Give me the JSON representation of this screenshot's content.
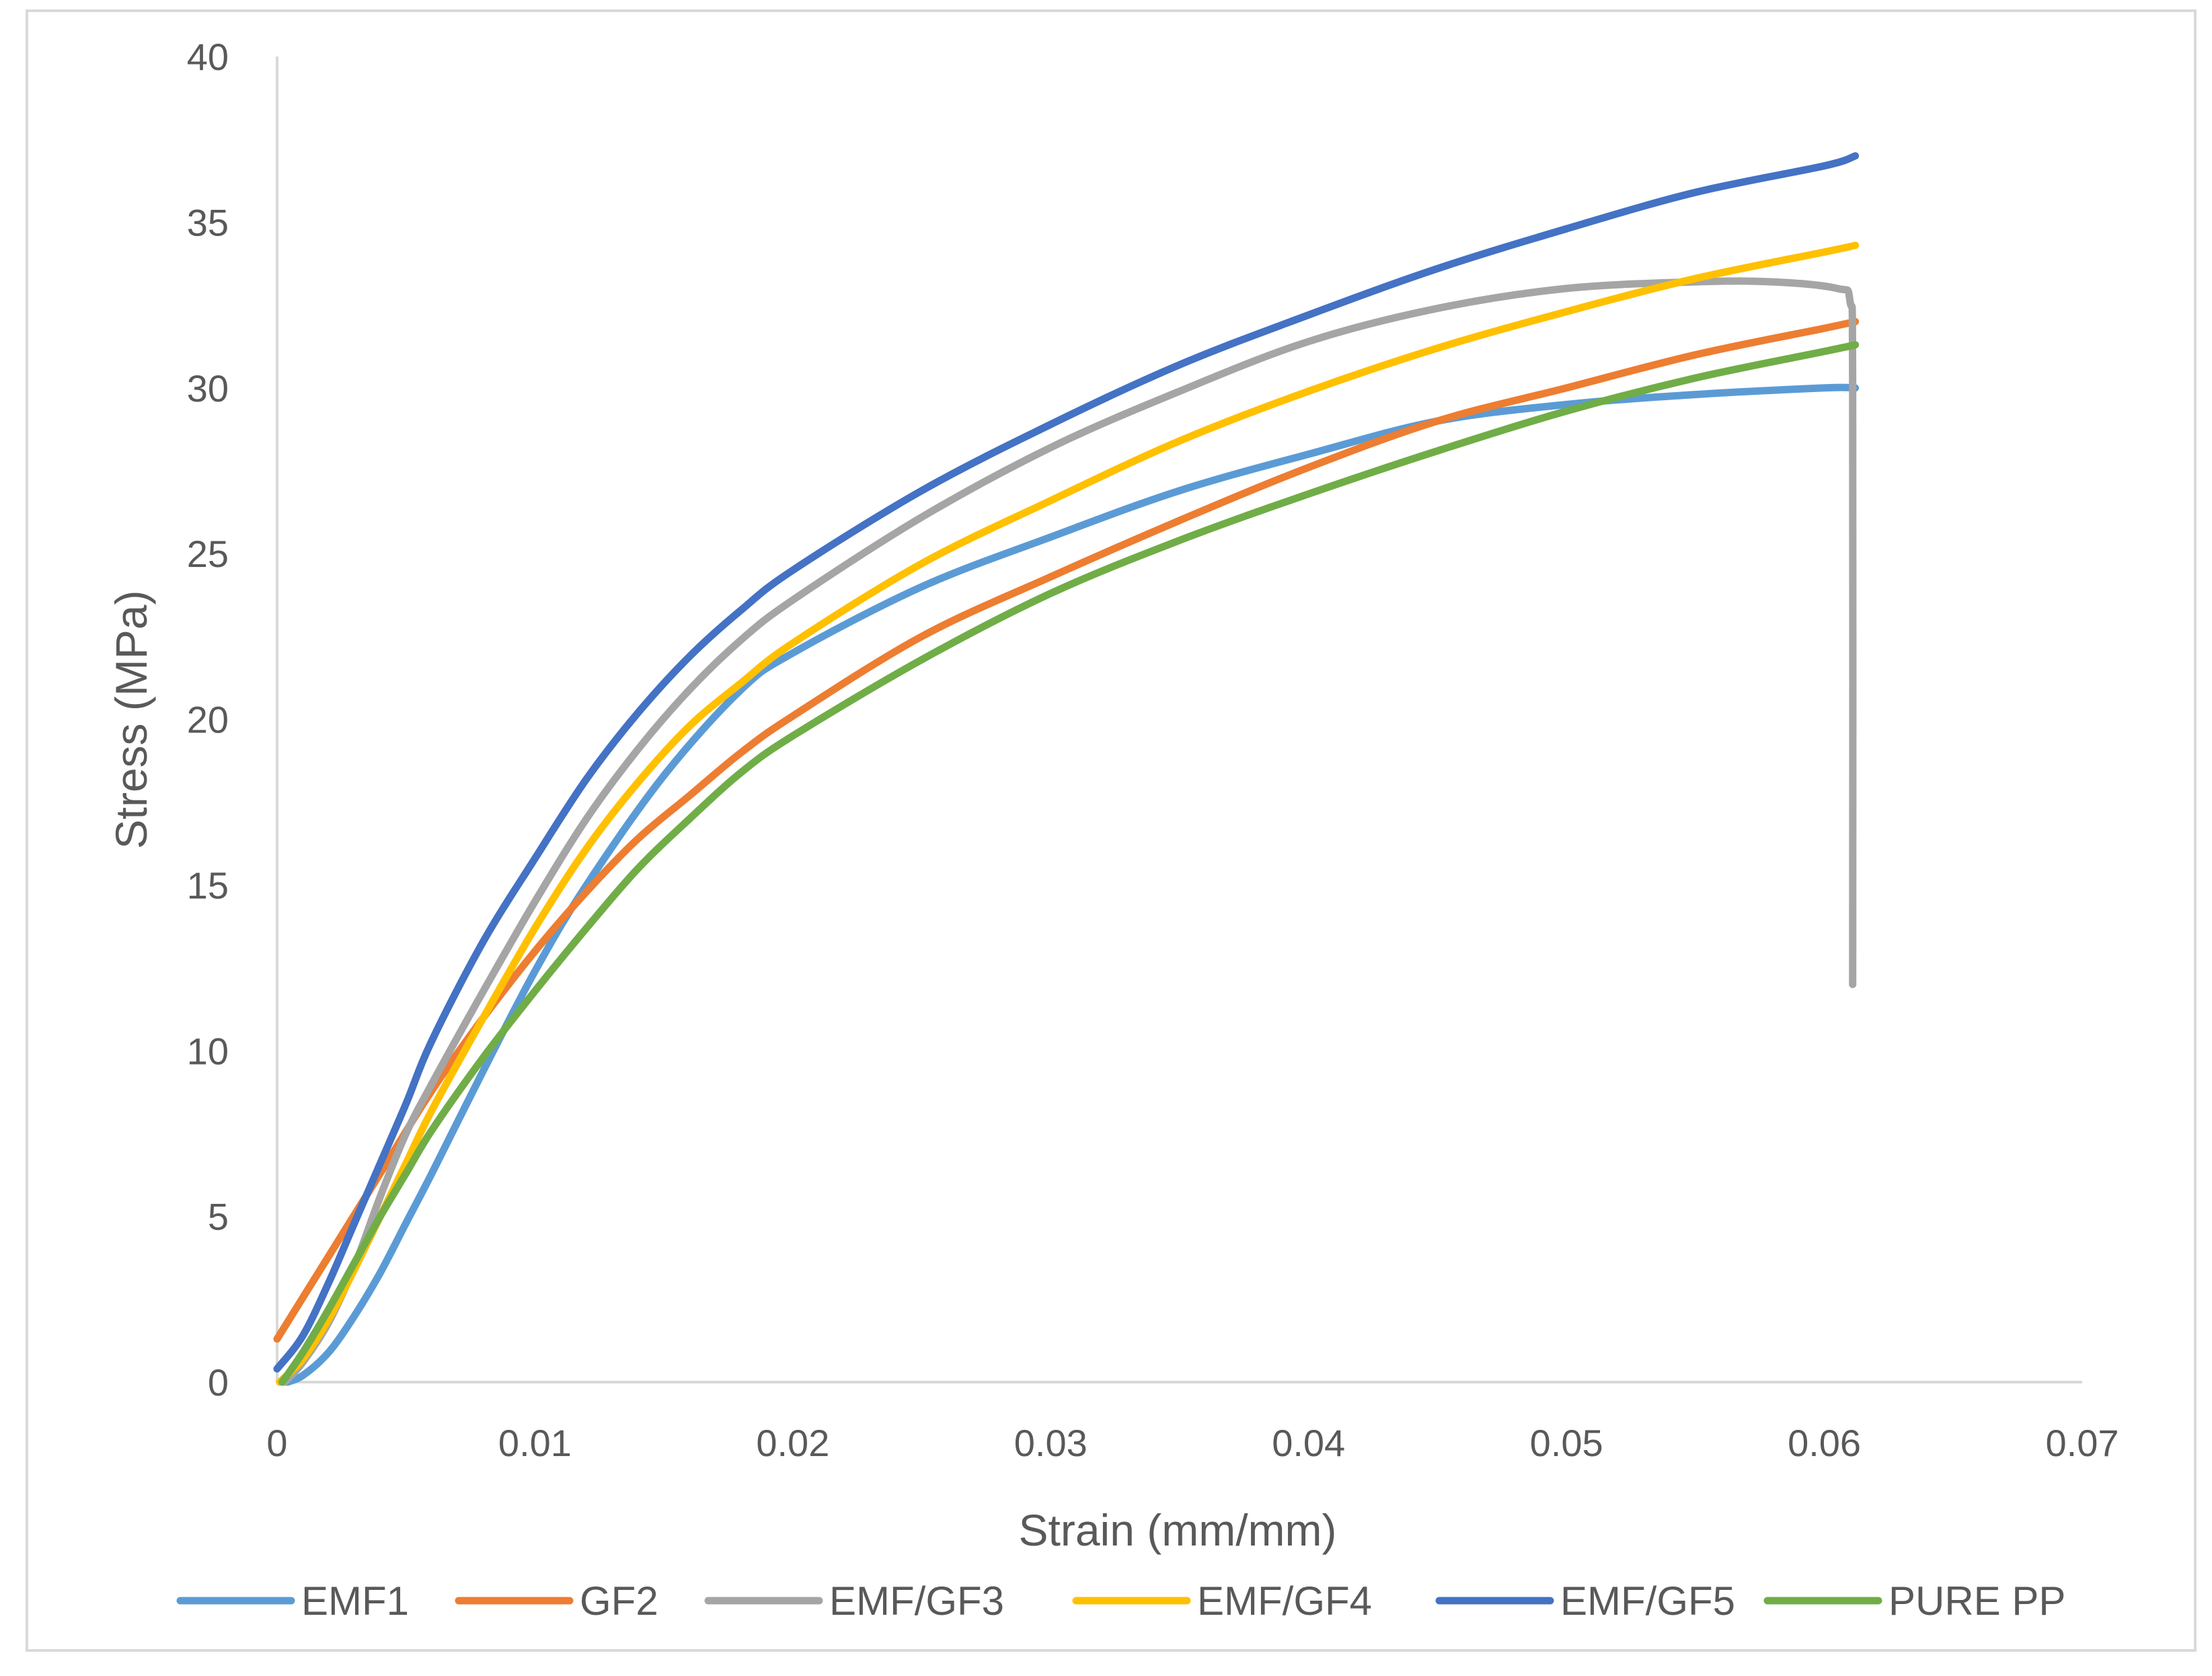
{
  "chart_data": {
    "type": "line",
    "title": "",
    "xlabel": "Strain (mm/mm)",
    "ylabel": "Stress (MPa)",
    "xlim": [
      0,
      0.07
    ],
    "ylim": [
      0,
      40
    ],
    "xticks": [
      0,
      0.01,
      0.02,
      0.03,
      0.04,
      0.05,
      0.06,
      0.07
    ],
    "xtick_labels": [
      "0",
      "0.01",
      "0.02",
      "0.03",
      "0.04",
      "0.05",
      "0.06",
      "0.07"
    ],
    "yticks": [
      0,
      5,
      10,
      15,
      20,
      25,
      30,
      35,
      40
    ],
    "ytick_labels": [
      "0",
      "5",
      "10",
      "15",
      "20",
      "25",
      "30",
      "35",
      "40"
    ],
    "grid": false,
    "legend_position": "bottom",
    "series": [
      {
        "name": "EMF1",
        "color": "#5B9BD5",
        "x": [
          0.0004,
          0.001,
          0.002,
          0.003,
          0.004,
          0.005,
          0.006,
          0.008,
          0.01,
          0.012,
          0.015,
          0.018,
          0.02,
          0.025,
          0.03,
          0.035,
          0.04,
          0.045,
          0.05,
          0.055,
          0.06,
          0.0612
        ],
        "y": [
          0.0,
          0.2,
          0.9,
          2.0,
          3.3,
          4.8,
          6.3,
          9.4,
          12.4,
          15.0,
          18.3,
          20.9,
          22.0,
          24.0,
          25.5,
          26.9,
          28.0,
          29.0,
          29.5,
          29.8,
          30.0,
          30.0
        ]
      },
      {
        "name": "GF2",
        "color": "#ED7D31",
        "x": [
          0.0,
          0.002,
          0.004,
          0.006,
          0.008,
          0.01,
          0.012,
          0.014,
          0.016,
          0.018,
          0.02,
          0.025,
          0.03,
          0.035,
          0.04,
          0.045,
          0.05,
          0.055,
          0.06,
          0.0612
        ],
        "y": [
          1.3,
          3.8,
          6.3,
          8.8,
          11.0,
          13.0,
          14.8,
          16.4,
          17.7,
          19.0,
          20.1,
          22.5,
          24.3,
          26.0,
          27.6,
          29.0,
          30.0,
          31.0,
          31.8,
          32.0
        ]
      },
      {
        "name": "EMF/GF3",
        "color": "#A5A5A5",
        "x": [
          0.0003,
          0.001,
          0.002,
          0.003,
          0.004,
          0.005,
          0.006,
          0.008,
          0.01,
          0.012,
          0.014,
          0.016,
          0.018,
          0.02,
          0.025,
          0.03,
          0.035,
          0.04,
          0.045,
          0.05,
          0.055,
          0.058,
          0.0605,
          0.061,
          0.0611,
          0.0611
        ],
        "y": [
          0.0,
          0.6,
          1.8,
          3.5,
          5.6,
          7.5,
          9.0,
          11.8,
          14.5,
          17.0,
          19.1,
          20.9,
          22.4,
          23.6,
          26.1,
          28.2,
          29.9,
          31.4,
          32.4,
          33.0,
          33.2,
          33.2,
          33.0,
          32.6,
          30.0,
          12.0
        ]
      },
      {
        "name": "EMF/GF4",
        "color": "#FFC000",
        "x": [
          0.0001,
          0.001,
          0.002,
          0.003,
          0.004,
          0.005,
          0.006,
          0.008,
          0.01,
          0.012,
          0.014,
          0.016,
          0.018,
          0.02,
          0.025,
          0.03,
          0.035,
          0.04,
          0.045,
          0.05,
          0.055,
          0.06,
          0.0612
        ],
        "y": [
          0.0,
          0.7,
          1.9,
          3.4,
          5.0,
          6.6,
          8.2,
          11.0,
          13.7,
          16.1,
          18.1,
          19.8,
          21.1,
          22.3,
          24.7,
          26.6,
          28.4,
          29.9,
          31.2,
          32.3,
          33.3,
          34.1,
          34.3
        ]
      },
      {
        "name": "EMF/GF5",
        "color": "#4472C4",
        "x": [
          0.0,
          0.001,
          0.002,
          0.003,
          0.004,
          0.005,
          0.006,
          0.008,
          0.01,
          0.012,
          0.014,
          0.016,
          0.018,
          0.02,
          0.025,
          0.03,
          0.035,
          0.04,
          0.045,
          0.05,
          0.055,
          0.06,
          0.0612
        ],
        "y": [
          0.4,
          1.4,
          3.0,
          4.8,
          6.6,
          8.4,
          10.3,
          13.3,
          15.8,
          18.2,
          20.2,
          21.9,
          23.3,
          24.5,
          26.9,
          28.9,
          30.7,
          32.2,
          33.6,
          34.8,
          35.9,
          36.7,
          37.0
        ]
      },
      {
        "name": "PURE PP",
        "color": "#70AD47",
        "x": [
          0.0002,
          0.001,
          0.002,
          0.003,
          0.004,
          0.005,
          0.006,
          0.008,
          0.01,
          0.012,
          0.014,
          0.016,
          0.018,
          0.02,
          0.025,
          0.03,
          0.035,
          0.04,
          0.045,
          0.05,
          0.055,
          0.06,
          0.0612
        ],
        "y": [
          0.0,
          0.9,
          2.2,
          3.6,
          5.0,
          6.3,
          7.6,
          9.8,
          11.8,
          13.7,
          15.5,
          17.0,
          18.4,
          19.5,
          21.8,
          23.8,
          25.4,
          26.8,
          28.1,
          29.3,
          30.3,
          31.1,
          31.3
        ]
      }
    ]
  }
}
